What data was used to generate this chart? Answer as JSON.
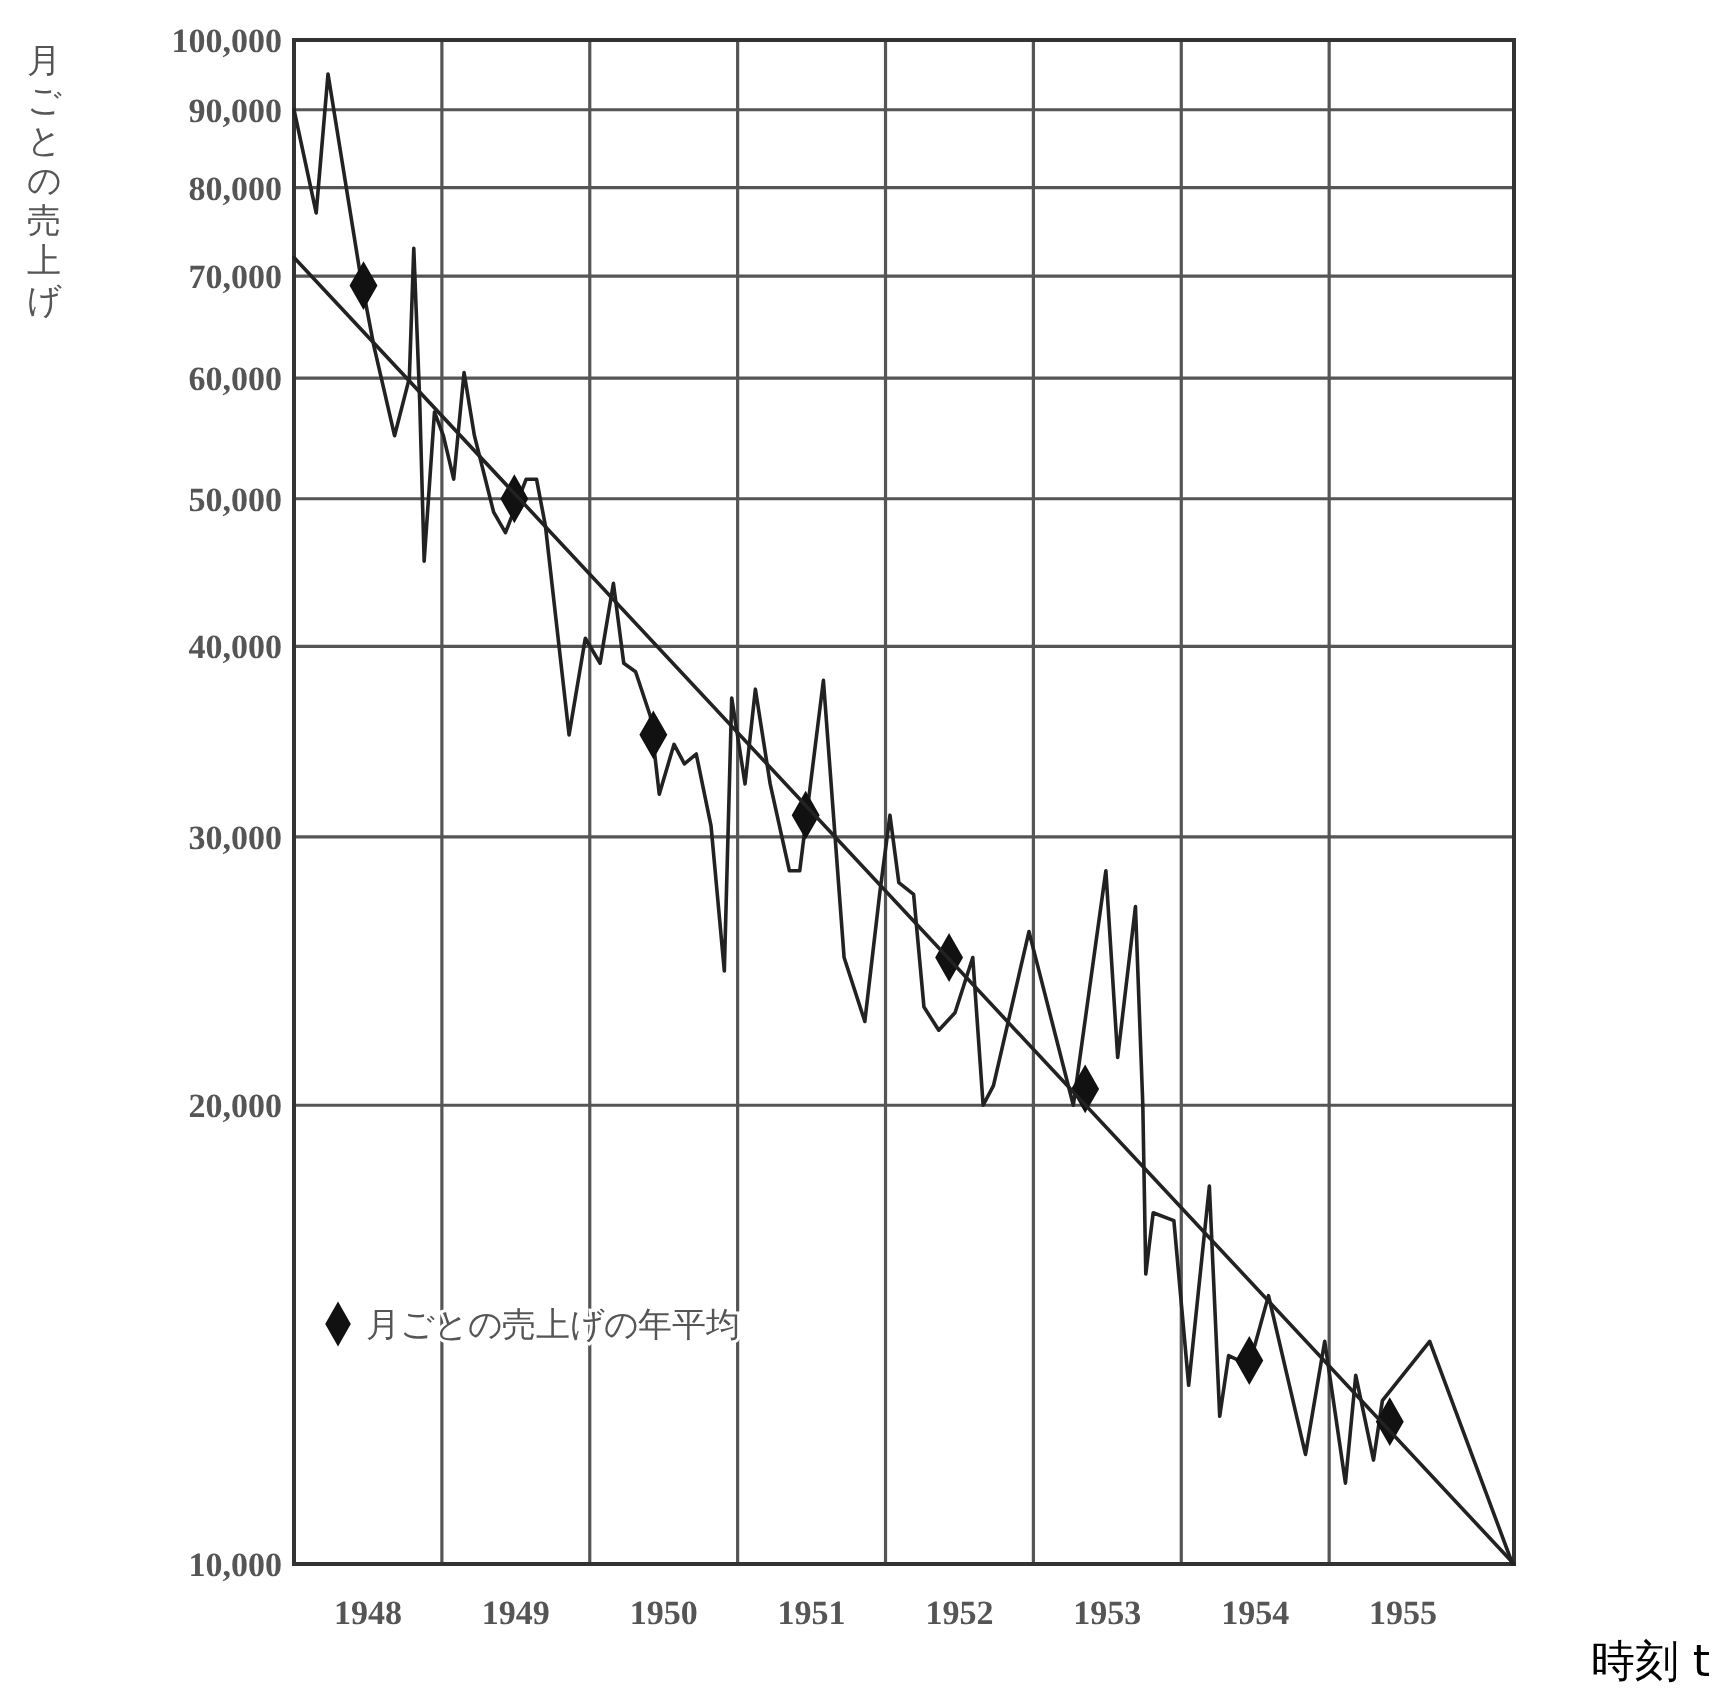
{
  "chart_data": {
    "type": "line",
    "ylabel": "月ごとの売上げ",
    "xlabel": "時刻 t",
    "log": "y",
    "grid": true,
    "legend": "bottom left",
    "xlim": [
      1948,
      1956.25
    ],
    "ylim": [
      10000,
      100000
    ],
    "xticks": [
      {
        "value": 1948.5,
        "label": "1948"
      },
      {
        "value": 1949,
        "label": null
      },
      {
        "value": 1949.5,
        "label": "1949"
      },
      {
        "value": 1950,
        "label": null
      },
      {
        "value": 1950.5,
        "label": "1950"
      },
      {
        "value": 1951,
        "label": null
      },
      {
        "value": 1951.5,
        "label": "1951"
      },
      {
        "value": 1952,
        "label": null
      },
      {
        "value": 1952.5,
        "label": "1952"
      },
      {
        "value": 1953,
        "label": null
      },
      {
        "value": 1953.5,
        "label": "1953"
      },
      {
        "value": 1954,
        "label": null
      },
      {
        "value": 1954.5,
        "label": "1954"
      },
      {
        "value": 1955,
        "label": null
      },
      {
        "value": 1955.5,
        "label": "1955"
      }
    ],
    "yticks": [
      {
        "value": 10000,
        "label": "10,000"
      },
      {
        "value": 20000,
        "label": "20,000"
      },
      {
        "value": 30000,
        "label": "30,000"
      },
      {
        "value": 40000,
        "label": "40,000"
      },
      {
        "value": 50000,
        "label": "50,000"
      },
      {
        "value": 60000,
        "label": "60,000"
      },
      {
        "value": 70000,
        "label": "70,000"
      },
      {
        "value": 80000,
        "label": "80,000"
      },
      {
        "value": 90000,
        "label": "90,000"
      },
      {
        "value": 100000,
        "label": "100,000"
      }
    ],
    "series": [
      {
        "type": "line",
        "color": "#222222",
        "marker": "none",
        "line_style": "solid",
        "x": [
          1948.0,
          1948.15,
          1948.23,
          1948.45,
          1948.54,
          1948.68,
          1948.78,
          1948.81,
          1948.85,
          1948.88,
          1948.95,
          1949.01,
          1949.08,
          1949.15,
          1949.22,
          1949.35,
          1949.43,
          1949.57,
          1949.64,
          1949.7,
          1949.86,
          1949.97,
          1950.07,
          1950.16,
          1950.23,
          1950.31,
          1950.41,
          1950.47,
          1950.57,
          1950.64,
          1950.72,
          1950.82,
          1950.91,
          1950.96,
          1951.05,
          1951.12,
          1951.22,
          1951.35,
          1951.42,
          1951.58,
          1951.72,
          1951.86,
          1951.96,
          1952.03,
          1952.09,
          1952.19,
          1952.26,
          1952.36,
          1952.47,
          1952.59,
          1952.66,
          1952.73,
          1952.97,
          1953.27,
          1953.49,
          1953.57,
          1953.69,
          1953.74,
          1953.76,
          1953.81,
          1953.95,
          1954.05,
          1954.19,
          1954.26,
          1954.32,
          1954.46,
          1954.59,
          1954.84,
          1954.97,
          1955.11,
          1955.18,
          1955.3,
          1955.36,
          1955.68,
          1956.24
        ],
        "values": [
          90000,
          77000,
          95000,
          70000,
          63000,
          55000,
          60000,
          73000,
          58000,
          45500,
          57000,
          55000,
          51500,
          60500,
          55000,
          49000,
          47500,
          51500,
          51500,
          48000,
          35000,
          40500,
          39000,
          44000,
          39000,
          38500,
          36000,
          32000,
          34500,
          33500,
          34000,
          30500,
          24500,
          37000,
          32500,
          37500,
          32500,
          28500,
          28500,
          38000,
          25000,
          22700,
          27500,
          31000,
          28000,
          27500,
          23200,
          22400,
          23000,
          25000,
          20000,
          20600,
          26000,
          20000,
          28500,
          21500,
          27000,
          20000,
          15500,
          17000,
          16800,
          13100,
          17700,
          12500,
          13700,
          13500,
          15000,
          11800,
          14000,
          11300,
          13300,
          11700,
          12800,
          14000,
          10000
        ]
      },
      {
        "type": "scatter",
        "name": "月ごとの売上げの年平均",
        "color": "#111111",
        "marker": "diamond",
        "x": [
          1948.47,
          1949.49,
          1950.43,
          1951.46,
          1952.43,
          1953.35,
          1954.46,
          1955.41
        ],
        "values": [
          69000,
          50000,
          35000,
          31000,
          25000,
          20500,
          13600,
          12400
        ]
      },
      {
        "type": "line",
        "color": "#222222",
        "marker": "none",
        "line_style": "solid",
        "x": [
          1948,
          1956.25
        ],
        "values": [
          72000,
          10000
        ]
      }
    ]
  }
}
